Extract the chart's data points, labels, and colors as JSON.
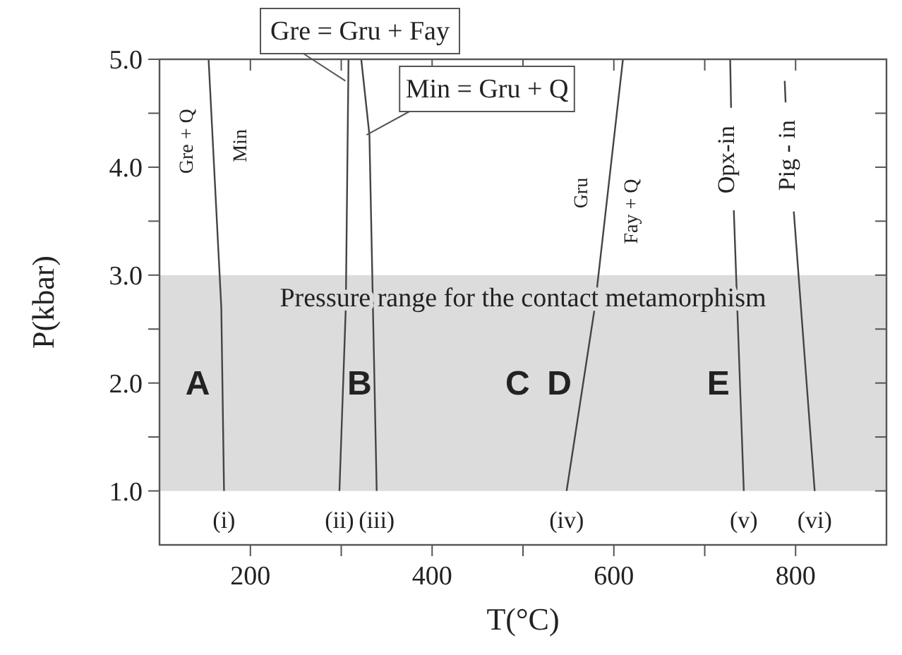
{
  "chart_data": {
    "type": "line",
    "xlabel": "T(°C)",
    "ylabel": "P(kbar)",
    "xlim": [
      100,
      900
    ],
    "ylim": [
      0.5,
      5.0
    ],
    "xticks": [
      {
        "value": 200,
        "label": "200"
      },
      {
        "value": 300,
        "label": null
      },
      {
        "value": 400,
        "label": "400"
      },
      {
        "value": 500,
        "label": null
      },
      {
        "value": 600,
        "label": "600"
      },
      {
        "value": 700,
        "label": null
      },
      {
        "value": 800,
        "label": "800"
      }
    ],
    "yticks": [
      {
        "value": 1,
        "label": "1.0"
      },
      {
        "value": 1.5,
        "label": null
      },
      {
        "value": 2,
        "label": "2.0"
      },
      {
        "value": 2.5,
        "label": null
      },
      {
        "value": 3,
        "label": "3.0"
      },
      {
        "value": 3.5,
        "label": null
      },
      {
        "value": 4,
        "label": "4.0"
      },
      {
        "value": 4.5,
        "label": null
      },
      {
        "value": 5,
        "label": "5.0"
      }
    ],
    "grid": false,
    "marker": "none",
    "line_style": "solid",
    "bands": [
      {
        "axis": "y",
        "from": 1.0,
        "to": 3.0,
        "label": "Pressure range for the contact metamorphism",
        "color": "#dcdcdc"
      }
    ],
    "series": [
      {
        "name": "(i)",
        "color": "#444444",
        "x": [
          154,
          168,
          171
        ],
        "values": [
          5.0,
          2.7,
          1.0
        ]
      },
      {
        "name": "(ii)",
        "color": "#444444",
        "x": [
          308,
          305,
          298
        ],
        "values": [
          5.0,
          2.7,
          1.0
        ]
      },
      {
        "name": "(iii)",
        "color": "#444444",
        "x": [
          322,
          331,
          339
        ],
        "values": [
          5.0,
          4.3,
          1.0
        ]
      },
      {
        "name": "(iv)",
        "color": "#444444",
        "x": [
          610,
          579,
          548
        ],
        "values": [
          5.0,
          2.7,
          1.0
        ]
      },
      {
        "name": "(v)",
        "color": "#444444",
        "x": [
          728,
          729,
          730,
          732,
          743
        ],
        "values": [
          5.0,
          4.55,
          null,
          3.6,
          1.0
        ]
      },
      {
        "name": "(vi)",
        "color": "#444444",
        "x": [
          788,
          789,
          790,
          798,
          821
        ],
        "values": [
          4.8,
          4.6,
          null,
          3.59,
          1.0
        ]
      }
    ],
    "annotations": [
      "Gre + Q",
      "Min",
      {
        "text": "Gre = Gru + Fay",
        "x": 307.7,
        "y": 4.8
      },
      {
        "text": "Min = Gru + Q",
        "x": 331,
        "y": 4.3
      },
      "Gru",
      "Fay + Q",
      "Opx-in",
      "Pig - in",
      "A",
      "B",
      "C",
      "D",
      "E"
    ]
  }
}
